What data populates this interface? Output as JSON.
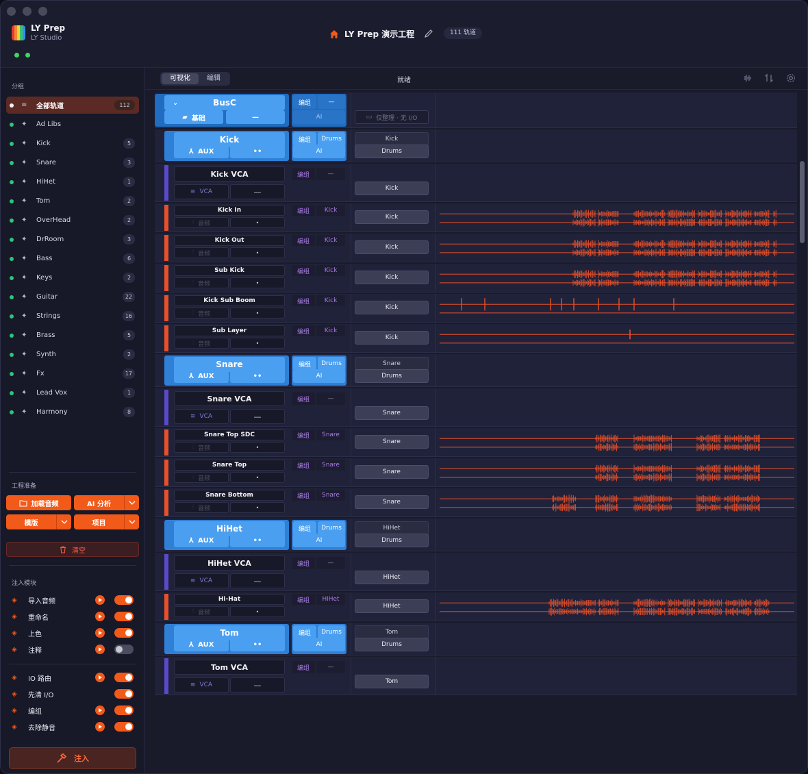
{
  "app": {
    "name": "LY Prep",
    "subtitle": "LY Studio"
  },
  "project": {
    "title": "LY Prep 演示工程",
    "track_badge": "111 轨道"
  },
  "sidebar": {
    "groups_heading": "分组",
    "groups": [
      {
        "label": "全部轨道",
        "count": "112",
        "active": true
      },
      {
        "label": "Ad Libs",
        "count": ""
      },
      {
        "label": "Kick",
        "count": "5"
      },
      {
        "label": "Snare",
        "count": "3"
      },
      {
        "label": "HiHet",
        "count": "1"
      },
      {
        "label": "Tom",
        "count": "2"
      },
      {
        "label": "OverHead",
        "count": "2"
      },
      {
        "label": "DrRoom",
        "count": "3"
      },
      {
        "label": "Bass",
        "count": "6"
      },
      {
        "label": "Keys",
        "count": "2"
      },
      {
        "label": "Guitar",
        "count": "22"
      },
      {
        "label": "Strings",
        "count": "16"
      },
      {
        "label": "Brass",
        "count": "5"
      },
      {
        "label": "Synth",
        "count": "2"
      },
      {
        "label": "Fx",
        "count": "17"
      },
      {
        "label": "Lead Vox",
        "count": "1"
      },
      {
        "label": "Harmony",
        "count": "8"
      }
    ],
    "prep_heading": "工程准备",
    "load_audio": "加载音频",
    "ai_analysis": "AI 分析",
    "template": "模版",
    "project_btn": "项目",
    "clear": "清空",
    "modules_heading": "注入模块",
    "modules": [
      {
        "label": "导入音频",
        "play": true,
        "on": true,
        "icon": "import-icon"
      },
      {
        "label": "重命名",
        "play": true,
        "on": true,
        "icon": "rename-icon"
      },
      {
        "label": "上色",
        "play": true,
        "on": true,
        "icon": "palette-icon"
      },
      {
        "label": "注释",
        "play": true,
        "on": false,
        "icon": "comment-icon"
      }
    ],
    "modules2": [
      {
        "label": "IO 路由",
        "play": true,
        "on": true,
        "icon": "routing-icon"
      },
      {
        "label": "先清 I/O",
        "play": false,
        "on": true,
        "icon": "reset-icon"
      },
      {
        "label": "编组",
        "play": true,
        "on": true,
        "icon": "group-icon"
      },
      {
        "label": "去除静音",
        "play": true,
        "on": true,
        "icon": "silence-icon"
      }
    ],
    "inject": "注入"
  },
  "toolbar": {
    "tab_visual": "可视化",
    "tab_edit": "编辑",
    "status": "就绪"
  },
  "tracks": [
    {
      "type": "bus",
      "name": "BusC",
      "sub_left": "基础",
      "sub_right": "—",
      "edit": "编组",
      "grp": "—",
      "ai": "AI",
      "route1": "仅整理 · 无 I/O"
    },
    {
      "type": "aux",
      "name": "Kick",
      "sub_left": "AUX",
      "sub_right": "••",
      "edit": "编组",
      "grp": "Drums",
      "ai": "AI",
      "route1": "Kick",
      "route2": "Drums"
    },
    {
      "type": "vca",
      "name": "Kick VCA",
      "sub_left": "VCA",
      "sub_right": "—",
      "edit": "编组",
      "grp": "—",
      "route1": "Kick"
    },
    {
      "type": "audio",
      "name": "Kick In",
      "sub_left": "音频",
      "sub_right": "•",
      "edit": "编组",
      "grp": "Kick",
      "route1": "Kick",
      "wave": "dense"
    },
    {
      "type": "audio",
      "name": "Kick Out",
      "sub_left": "音频",
      "sub_right": "•",
      "edit": "编组",
      "grp": "Kick",
      "route1": "Kick",
      "wave": "dense"
    },
    {
      "type": "audio",
      "name": "Sub Kick",
      "sub_left": "音频",
      "sub_right": "•",
      "edit": "编组",
      "grp": "Kick",
      "route1": "Kick",
      "wave": "dense"
    },
    {
      "type": "audio",
      "name": "Kick Sub Boom",
      "sub_left": "音频",
      "sub_right": "•",
      "edit": "编组",
      "grp": "Kick",
      "route1": "Kick",
      "wave": "spikes"
    },
    {
      "type": "audio",
      "name": "Sub Layer",
      "sub_left": "音频",
      "sub_right": "•",
      "edit": "编组",
      "grp": "Kick",
      "route1": "Kick",
      "wave": "single"
    },
    {
      "type": "aux",
      "name": "Snare",
      "sub_left": "AUX",
      "sub_right": "••",
      "edit": "编组",
      "grp": "Drums",
      "ai": "AI",
      "route1": "Snare",
      "route2": "Drums"
    },
    {
      "type": "vca",
      "name": "Snare VCA",
      "sub_left": "VCA",
      "sub_right": "—",
      "edit": "编组",
      "grp": "—",
      "route1": "Snare"
    },
    {
      "type": "audio",
      "name": "Snare Top SDC",
      "sub_left": "音频",
      "sub_right": "•",
      "edit": "编组",
      "grp": "Snare",
      "route1": "Snare",
      "wave": "snare"
    },
    {
      "type": "audio",
      "name": "Snare Top",
      "sub_left": "音频",
      "sub_right": "•",
      "edit": "编组",
      "grp": "Snare",
      "route1": "Snare",
      "wave": "snare"
    },
    {
      "type": "audio",
      "name": "Snare Bottom",
      "sub_left": "音频",
      "sub_right": "•",
      "edit": "编组",
      "grp": "Snare",
      "route1": "Snare",
      "wave": "snare2"
    },
    {
      "type": "aux",
      "name": "HiHet",
      "sub_left": "AUX",
      "sub_right": "••",
      "edit": "编组",
      "grp": "Drums",
      "ai": "AI",
      "route1": "HiHet",
      "route2": "Drums"
    },
    {
      "type": "vca",
      "name": "HiHet VCA",
      "sub_left": "VCA",
      "sub_right": "—",
      "edit": "编组",
      "grp": "—",
      "route1": "HiHet"
    },
    {
      "type": "audio",
      "name": "Hi-Hat",
      "sub_left": "音频",
      "sub_right": "•",
      "edit": "编组",
      "grp": "HiHet",
      "route1": "HiHet",
      "wave": "hihat"
    },
    {
      "type": "aux",
      "name": "Tom",
      "sub_left": "AUX",
      "sub_right": "••",
      "edit": "编组",
      "grp": "Drums",
      "ai": "AI",
      "route1": "Tom",
      "route2": "Drums"
    },
    {
      "type": "vca",
      "name": "Tom VCA",
      "sub_left": "VCA",
      "sub_right": "—",
      "edit": "编组",
      "grp": "—",
      "route1": "Tom"
    }
  ],
  "colors": {
    "accent": "#f25a1a",
    "aux_blue": "#4a9ff0",
    "vca_purple": "#5a4ac8",
    "audio_red": "#e8502a",
    "group_dot": "#2dc57a"
  }
}
